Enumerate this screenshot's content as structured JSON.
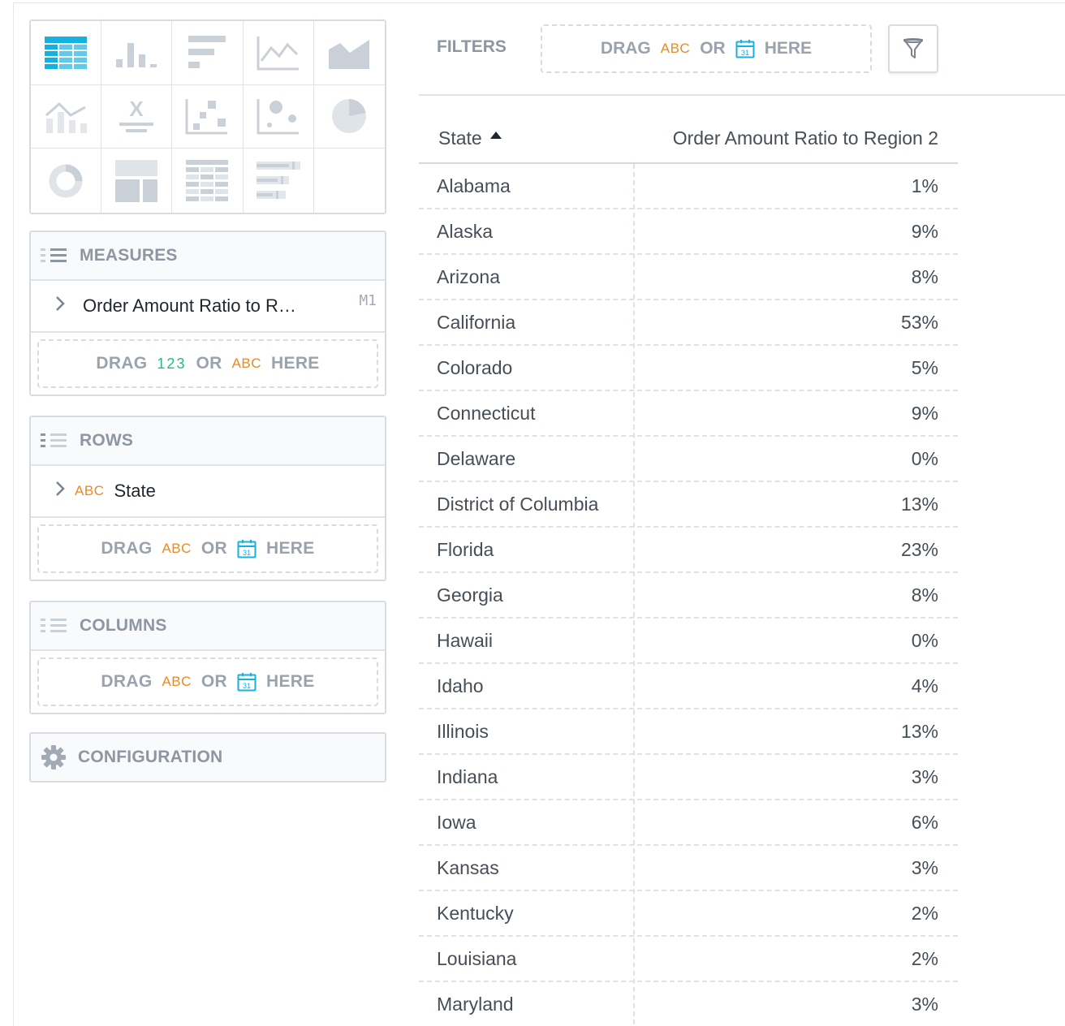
{
  "viz_types": [
    {
      "name": "table-viz-icon",
      "active": true
    },
    {
      "name": "column-chart-icon"
    },
    {
      "name": "bar-chart-icon"
    },
    {
      "name": "line-chart-icon"
    },
    {
      "name": "area-chart-icon"
    },
    {
      "name": "combo-chart-icon"
    },
    {
      "name": "headline-icon"
    },
    {
      "name": "scatter-plot-icon"
    },
    {
      "name": "bubble-chart-icon"
    },
    {
      "name": "pie-chart-icon"
    },
    {
      "name": "donut-chart-icon"
    },
    {
      "name": "treemap-icon"
    },
    {
      "name": "heatmap-icon"
    },
    {
      "name": "bullet-chart-icon"
    }
  ],
  "icon_text": {
    "headline": "X"
  },
  "colors": {
    "active": "#14b2e2",
    "inactive": "#c9d0d7",
    "abc": "#e98a26",
    "num": "#1abf8a",
    "calendar": "#14b2e2"
  },
  "measures": {
    "title": "MEASURES",
    "item_label": "Order Amount Ratio to R…",
    "item_code": "M1",
    "drop_drag": "DRAG",
    "drop_num": "123",
    "drop_or": "OR",
    "drop_abc": "ABC",
    "drop_here": "HERE"
  },
  "rows_bucket": {
    "title": "ROWS",
    "item_type": "ABC",
    "item_label": "State",
    "drop_drag": "DRAG",
    "drop_abc": "ABC",
    "drop_or": "OR",
    "drop_here": "HERE"
  },
  "columns_bucket": {
    "title": "COLUMNS",
    "drop_drag": "DRAG",
    "drop_abc": "ABC",
    "drop_or": "OR",
    "drop_here": "HERE"
  },
  "configuration": {
    "title": "CONFIGURATION"
  },
  "filters": {
    "label": "FILTERS",
    "drop_drag": "DRAG",
    "drop_abc": "ABC",
    "drop_or": "OR",
    "drop_here": "HERE",
    "calendar_day": "31"
  },
  "table": {
    "col_state": "State",
    "col_value": "Order Amount Ratio to Region 2",
    "sort": "ascending",
    "rows": [
      {
        "state": "Alabama",
        "value": "1%"
      },
      {
        "state": "Alaska",
        "value": "9%"
      },
      {
        "state": "Arizona",
        "value": "8%"
      },
      {
        "state": "California",
        "value": "53%"
      },
      {
        "state": "Colorado",
        "value": "5%"
      },
      {
        "state": "Connecticut",
        "value": "9%"
      },
      {
        "state": "Delaware",
        "value": "0%"
      },
      {
        "state": "District of Columbia",
        "value": "13%"
      },
      {
        "state": "Florida",
        "value": "23%"
      },
      {
        "state": "Georgia",
        "value": "8%"
      },
      {
        "state": "Hawaii",
        "value": "0%"
      },
      {
        "state": "Idaho",
        "value": "4%"
      },
      {
        "state": "Illinois",
        "value": "13%"
      },
      {
        "state": "Indiana",
        "value": "3%"
      },
      {
        "state": "Iowa",
        "value": "6%"
      },
      {
        "state": "Kansas",
        "value": "3%"
      },
      {
        "state": "Kentucky",
        "value": "2%"
      },
      {
        "state": "Louisiana",
        "value": "2%"
      },
      {
        "state": "Maryland",
        "value": "3%"
      }
    ]
  }
}
